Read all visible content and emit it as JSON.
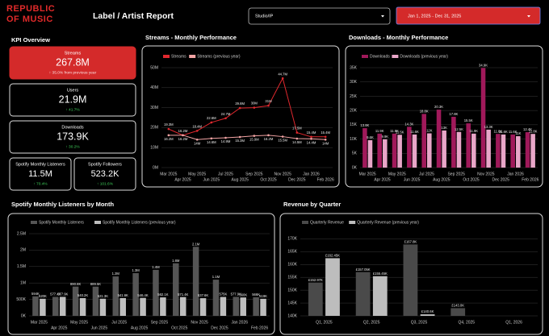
{
  "header": {
    "logo": [
      "REPUBLIC",
      "OF MUSIC"
    ],
    "title": "Label / Artist Report",
    "filter": "Studio/IP",
    "date_range": "Jan 1, 2025 - Dec 31, 2025"
  },
  "kpi": {
    "title": "KPI Overview",
    "cards": [
      {
        "label": "Streams",
        "value": "267.8M",
        "change": "↑ 35.0% from previous year"
      },
      {
        "label": "Users",
        "value": "21.9M",
        "change": "↑ 41.7%"
      },
      {
        "label": "Downloads",
        "value": "173.9K",
        "change": "↑ 30.2%"
      },
      {
        "label": "Spotify Monthly Listeners",
        "value": "11.5M",
        "change": "↑ 70.4%"
      },
      {
        "label": "Spotify Followers",
        "value": "523.2K",
        "change": "↑ 101.6%"
      }
    ]
  },
  "chart_data": [
    {
      "type": "line",
      "title": "Streams - Monthly Performance",
      "categories": [
        "Mar 2025",
        "Apr 2025",
        "May 2025",
        "Jun 2025",
        "Jul 2025",
        "Aug 2025",
        "Sep 2025",
        "Oct 2025",
        "Nov 2025",
        "Dec 2025",
        "Jan 2026",
        "Feb 2026"
      ],
      "series": [
        {
          "name": "Streams",
          "color": "#e0282e",
          "values": [
            19.3,
            16.2,
            18.4,
            22.6,
            24.7,
            29.8,
            30,
            31,
            44.7,
            17.5,
            15.4,
            15.4
          ],
          "value_labels": [
            "19.3M",
            "16.2M",
            "18.4M",
            "22.6M",
            "24.7M",
            "29.8M",
            "30M",
            "31M",
            "44.7M",
            "17.5M",
            "15.4M",
            "15.4M"
          ]
        },
        {
          "name": "Streams (previous year)",
          "color": "#f4a5a5",
          "values": [
            16.2,
            16.2,
            14,
            14.6,
            14.9,
            15.3,
            15.9,
            16.2,
            15.5,
            14.5,
            14.4,
            14
          ],
          "value_labels": [
            "16.2M",
            "16.2M",
            "14M",
            "14.6M",
            "14.9M",
            "15.3M",
            "15.9M",
            "16.2M",
            "15.5M",
            "14.5M",
            "14.4M",
            "14M"
          ]
        }
      ],
      "ylim": [
        0,
        50
      ],
      "yticks": [
        {
          "value": 0,
          "label": "0M"
        },
        {
          "value": 10,
          "label": "10M"
        },
        {
          "value": 20,
          "label": "20M"
        },
        {
          "value": 30,
          "label": "30M"
        },
        {
          "value": 40,
          "label": "40M"
        },
        {
          "value": 50,
          "label": "50M"
        }
      ],
      "grid": true
    },
    {
      "type": "bar",
      "title": "Downloads - Monthly Performance",
      "categories": [
        "Mar 2025",
        "Apr 2025",
        "May 2025",
        "Jun 2025",
        "Jul 2025",
        "Aug 2025",
        "Sep 2025",
        "Oct 2025",
        "Nov 2025",
        "Dec 2025",
        "Jan 2026",
        "Feb 2026"
      ],
      "series": [
        {
          "name": "Downloads",
          "color": "#a0195a",
          "values": [
            13.8,
            11.9,
            11.9,
            14.3,
            18.8,
            20.3,
            17.8,
            15.5,
            34.9,
            11.8,
            11.6,
            12.4
          ],
          "value_labels": [
            "13.8K",
            "11.9K",
            "11.9K",
            "14.3K",
            "18.8K",
            "20.3K",
            "17.8K",
            "15.5K",
            "34.9K",
            "11.8K",
            "11.6K",
            "12.4K"
          ]
        },
        {
          "name": "Downloads (previous year)",
          "color": "#e8a6c8",
          "values": [
            9.6,
            9.9,
            11.5,
            11.6,
            12,
            13,
            12.5,
            11.9,
            13.3,
            11.6,
            11,
            11.8
          ],
          "value_labels": [
            "9.6K",
            "9.9K",
            "11.5K",
            "11.6K",
            "12K",
            "13K",
            "12.5K",
            "11.9K",
            "13.3K",
            "11.6K",
            "11K",
            "11.8K"
          ]
        }
      ],
      "ylim": [
        0,
        35
      ],
      "yticks": [
        {
          "value": 0,
          "label": "0K"
        },
        {
          "value": 5,
          "label": "5K"
        },
        {
          "value": 10,
          "label": "10K"
        },
        {
          "value": 15,
          "label": "15K"
        },
        {
          "value": 20,
          "label": "20K"
        },
        {
          "value": 25,
          "label": "25K"
        },
        {
          "value": 30,
          "label": "30K"
        },
        {
          "value": 35,
          "label": "35K"
        }
      ],
      "grid": true
    },
    {
      "type": "bar",
      "title": "Spotify Monthly Listeners by Month",
      "categories": [
        "Mar 2025",
        "Apr 2025",
        "May 2025",
        "Jun 2025",
        "Jul 2025",
        "Aug 2025",
        "Sep 2025",
        "Oct 2025",
        "Nov 2025",
        "Dec 2025",
        "Jan 2026",
        "Feb 2026"
      ],
      "series": [
        {
          "name": "Spotify Monthly Listeners",
          "color": "#555555",
          "values": [
            594000,
            577400,
            890800,
            889500,
            1200000,
            1300000,
            1400000,
            1600000,
            2100000,
            1100000,
            577900,
            566000
          ],
          "value_labels": [
            "594K",
            "577.4K",
            "890.8K",
            "889.5K",
            "1.2M",
            "1.3M",
            "1.4M",
            "1.6M",
            "2.1M",
            "1.1M",
            "577.9K",
            "566K"
          ]
        },
        {
          "name": "Spotify Monthly Listeners (previous year)",
          "color": "#bdbdbd",
          "values": [
            520000,
            577900,
            540200,
            521300,
            541600,
            546400,
            562100,
            571400,
            537600,
            575000,
            560000,
            519000
          ],
          "value_labels": [
            "520K",
            "577.9K",
            "540.2K",
            "521.3K",
            "541.6K",
            "546.4K",
            "562.1K",
            "571.4K",
            "537.6K",
            "575K",
            "560K",
            "519K"
          ]
        }
      ],
      "ylim": [
        0,
        2500000
      ],
      "yticks": [
        {
          "value": 0,
          "label": "0K"
        },
        {
          "value": 500000,
          "label": "500K"
        },
        {
          "value": 1000000,
          "label": "1M"
        },
        {
          "value": 1500000,
          "label": "1.5M"
        },
        {
          "value": 2000000,
          "label": "2M"
        },
        {
          "value": 2500000,
          "label": "2.5M"
        }
      ],
      "grid": true
    },
    {
      "type": "bar",
      "title": "Revenue by Quarter",
      "categories": [
        "Q1, 2025",
        "Q2, 2025",
        "Q3, 2025",
        "Q4, 2025",
        "Q1, 2026"
      ],
      "series": [
        {
          "name": "Quarterly Revenue",
          "color": "#4a4a4a",
          "values": [
            152.97,
            157.05,
            167.8,
            143.0,
            null
          ],
          "value_labels": [
            "£152.97K",
            "£157.05K",
            "£167.8K",
            "£143.0K",
            null
          ]
        },
        {
          "name": "Quarterly Revenue (previous year)",
          "color": "#bdbdbd",
          "values": [
            162.45,
            155.45,
            140.6,
            null,
            null
          ],
          "value_labels": [
            "£162.45K",
            "£155.45K",
            "£140.6K",
            null,
            null
          ]
        }
      ],
      "ylim": [
        140,
        172
      ],
      "yticks": [
        {
          "value": 140,
          "label": "140K"
        },
        {
          "value": 145,
          "label": "145K"
        },
        {
          "value": 150,
          "label": "150K"
        },
        {
          "value": 155,
          "label": "155K"
        },
        {
          "value": 160,
          "label": "160K"
        },
        {
          "value": 165,
          "label": "165K"
        },
        {
          "value": 170,
          "label": "170K"
        }
      ],
      "grid": true
    }
  ]
}
